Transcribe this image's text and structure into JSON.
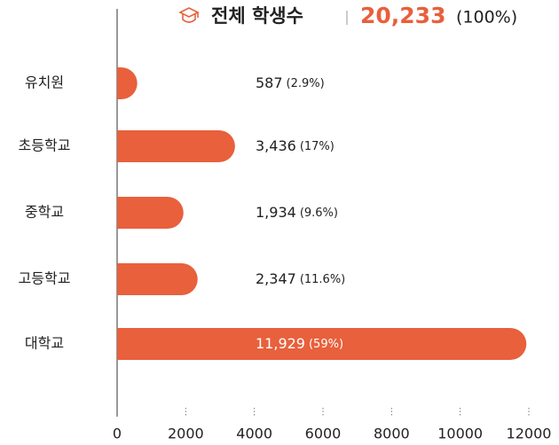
{
  "chart_data": {
    "type": "hbar",
    "title": "전체 학생수",
    "total": "20,233",
    "total_percent": "(100%)",
    "categories": [
      "유치원",
      "초등학교",
      "중학교",
      "고등학교",
      "대학교"
    ],
    "values": [
      587,
      3436,
      1934,
      2347,
      11929
    ],
    "value_labels": [
      "587",
      "3,436",
      "1,934",
      "2,347",
      "11,929"
    ],
    "percent_labels": [
      "(2.9%)",
      "(17%)",
      "(9.6%)",
      "(11.6%)",
      "(59%)"
    ],
    "color": "#e8603c",
    "xlim": [
      0,
      12000
    ],
    "xticks": [
      0,
      2000,
      4000,
      6000,
      8000,
      10000,
      12000
    ]
  }
}
